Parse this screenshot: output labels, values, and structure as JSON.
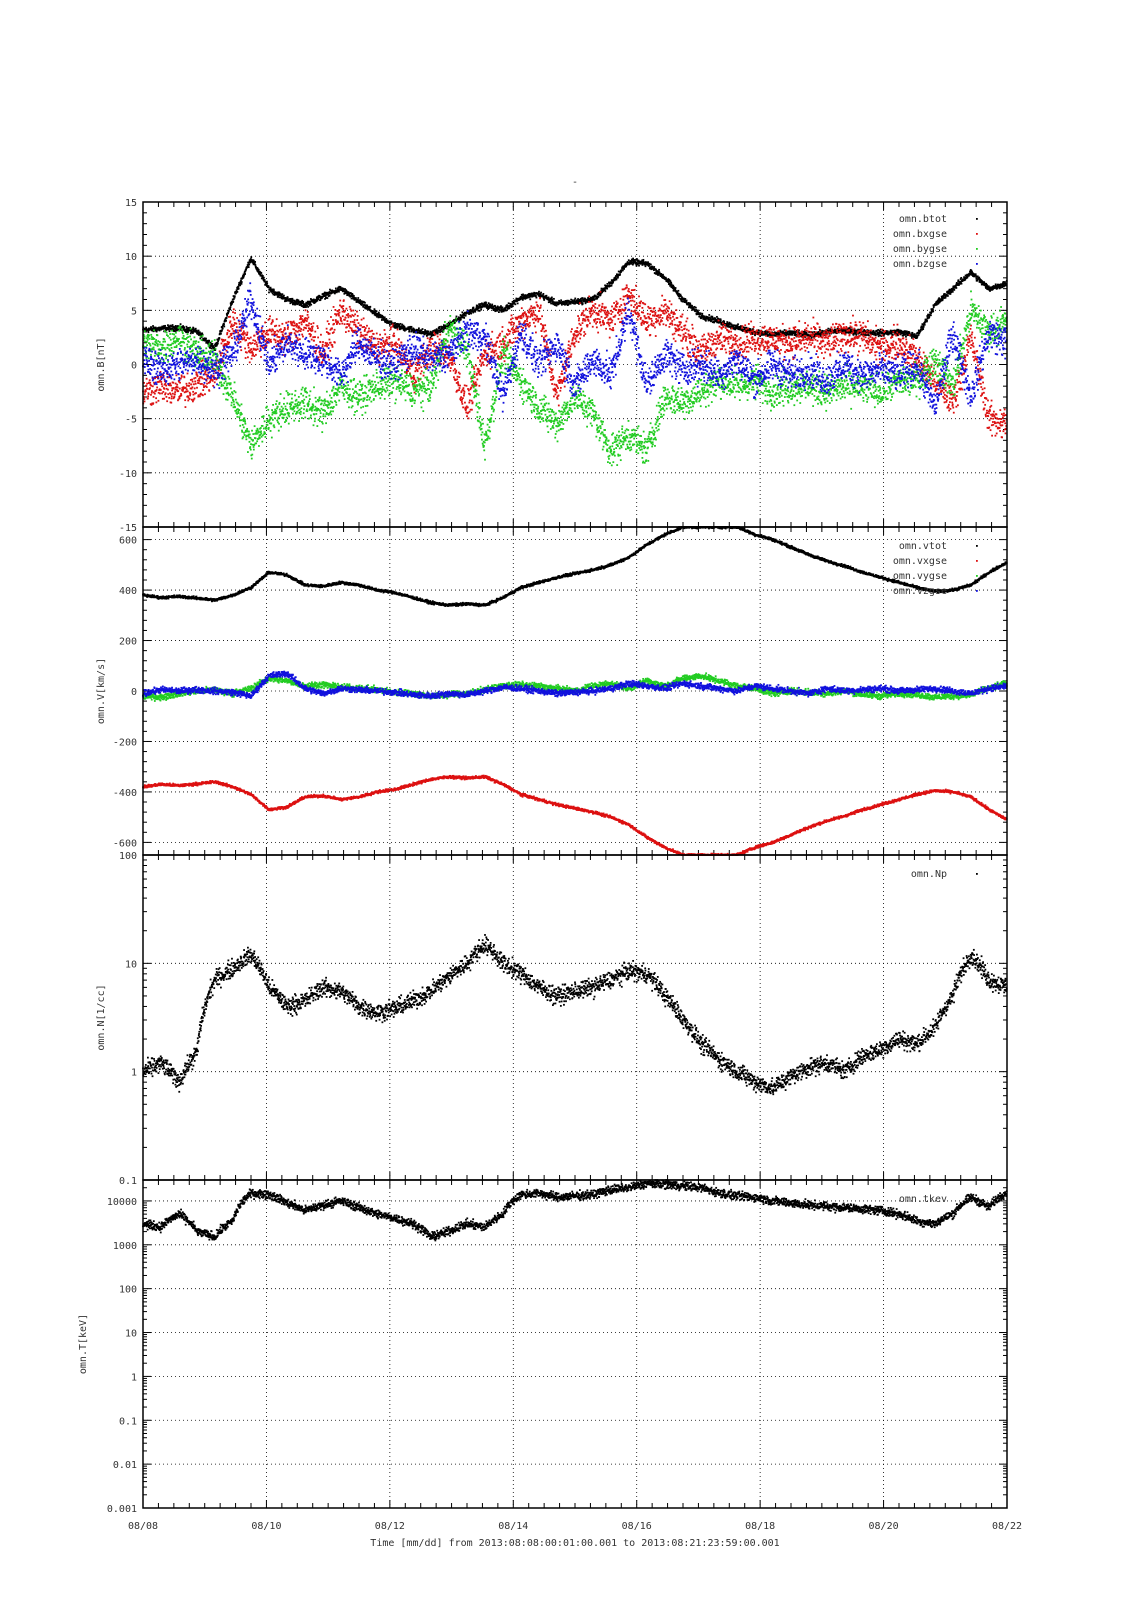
{
  "title": "-",
  "footer": "Time [mm/dd]  from 2013:08:08:00:01:00.001  to  2013:08:21:23:59:00.001",
  "chart_data": [
    {
      "type": "scatter",
      "ylabel": "omn.B[nT]",
      "ylim": [
        -15,
        15
      ],
      "yscale": "linear",
      "yticks": [
        -15,
        -10,
        -5,
        0,
        5,
        10,
        15
      ],
      "ytick_labels": [
        "-15",
        "-10",
        "-5",
        "0",
        "5",
        "10",
        "15"
      ],
      "xlim_days": [
        0,
        14
      ],
      "xticks_days": [
        0,
        2,
        4,
        6,
        8,
        10,
        12,
        14
      ],
      "xtick_labels": [
        "08/08",
        "08/10",
        "08/12",
        "08/14",
        "08/16",
        "08/18",
        "08/20",
        "08/22"
      ],
      "grid": true,
      "legend_position": "top-right",
      "series": [
        {
          "name": "omn.btot",
          "color": "#000000",
          "values": [
            3.2,
            3.3,
            3.4,
            3.0,
            1.5,
            6.0,
            9.8,
            7.0,
            6.0,
            5.5,
            6.3,
            7.0,
            5.8,
            4.6,
            3.6,
            3.2,
            2.8,
            3.6,
            4.8,
            5.5,
            5.0,
            6.2,
            6.5,
            5.6,
            5.8,
            6.0,
            7.5,
            9.5,
            9.3,
            8.0,
            6.0,
            4.5,
            4.0,
            3.4,
            3.0,
            2.8,
            2.9,
            2.7,
            3.0,
            3.1,
            3.0,
            2.9,
            3.0,
            2.6,
            5.5,
            7.0,
            8.5,
            7.0,
            7.5
          ]
        },
        {
          "name": "omn.bxgse",
          "color": "#dd1111",
          "values": [
            -2.5,
            -2.0,
            -2.5,
            -1.8,
            -1.0,
            4.0,
            1.5,
            3.0,
            2.5,
            4.0,
            1.0,
            5.0,
            3.0,
            1.5,
            2.0,
            -1.0,
            1.5,
            1.0,
            -4.0,
            1.0,
            2.0,
            4.0,
            5.0,
            -3.0,
            3.0,
            5.0,
            4.0,
            6.5,
            4.0,
            5.0,
            3.0,
            1.0,
            2.5,
            2.0,
            2.5,
            2.3,
            2.0,
            2.5,
            2.0,
            2.8,
            2.6,
            1.5,
            2.0,
            0.5,
            -1.5,
            -3.5,
            2.5,
            -5.0,
            -5.5
          ]
        },
        {
          "name": "omn.bygse",
          "color": "#22cc22",
          "values": [
            2.0,
            1.5,
            2.5,
            1.0,
            0.5,
            -3.0,
            -7.5,
            -5.0,
            -4.0,
            -3.5,
            -4.5,
            -2.0,
            -3.0,
            -2.0,
            -1.5,
            -2.5,
            -2.0,
            3.5,
            1.5,
            -7.5,
            1.0,
            -1.5,
            -4.0,
            -5.5,
            -3.0,
            -4.5,
            -8.0,
            -6.5,
            -8.0,
            -3.0,
            -3.5,
            -2.5,
            -1.5,
            -2.0,
            -1.5,
            -2.5,
            -2.0,
            -2.0,
            -2.5,
            -2.0,
            -2.2,
            -2.5,
            -1.5,
            -1.5,
            0.5,
            -2.0,
            5.0,
            3.0,
            4.0
          ]
        },
        {
          "name": "omn.bzgse",
          "color": "#1111dd",
          "values": [
            0.5,
            -0.5,
            0.0,
            0.5,
            -0.5,
            1.0,
            6.0,
            0.0,
            2.0,
            1.0,
            0.5,
            -1.0,
            2.0,
            0.5,
            0.0,
            1.5,
            0.5,
            1.0,
            3.0,
            2.5,
            -3.0,
            3.0,
            0.0,
            2.0,
            -2.0,
            0.5,
            -1.0,
            5.0,
            -2.0,
            1.0,
            -0.5,
            0.0,
            -1.0,
            0.5,
            -1.5,
            0.0,
            -1.0,
            -0.5,
            -1.5,
            0.0,
            -1.0,
            -0.5,
            -1.0,
            0.0,
            -4.0,
            3.0,
            -3.0,
            3.0,
            2.0
          ]
        }
      ]
    },
    {
      "type": "scatter",
      "ylabel": "omn.V[km/s]",
      "ylim": [
        -650,
        650
      ],
      "yscale": "linear",
      "yticks": [
        -600,
        -400,
        -200,
        0,
        200,
        400,
        600
      ],
      "ytick_labels": [
        "-600",
        "-400",
        "-200",
        "0",
        "200",
        "400",
        "600"
      ],
      "xlim_days": [
        0,
        14
      ],
      "xticks_days": [
        0,
        2,
        4,
        6,
        8,
        10,
        12,
        14
      ],
      "xtick_labels": [
        "08/08",
        "08/10",
        "08/12",
        "08/14",
        "08/16",
        "08/18",
        "08/20",
        "08/22"
      ],
      "grid": true,
      "legend_position": "top-right",
      "series": [
        {
          "name": "omn.vtot",
          "color": "#000000",
          "values": [
            380,
            370,
            375,
            368,
            360,
            380,
            410,
            470,
            460,
            420,
            415,
            430,
            420,
            400,
            390,
            370,
            350,
            340,
            345,
            340,
            370,
            410,
            430,
            450,
            465,
            480,
            500,
            530,
            580,
            620,
            650,
            650,
            650,
            650,
            620,
            600,
            570,
            540,
            515,
            495,
            470,
            450,
            430,
            410,
            395,
            400,
            420,
            470,
            510
          ]
        },
        {
          "name": "omn.vxgse",
          "color": "#dd1111",
          "values": [
            -380,
            -370,
            -375,
            -368,
            -360,
            -380,
            -410,
            -470,
            -460,
            -420,
            -415,
            -430,
            -420,
            -400,
            -390,
            -370,
            -350,
            -340,
            -345,
            -340,
            -370,
            -410,
            -430,
            -450,
            -465,
            -480,
            -500,
            -530,
            -580,
            -620,
            -650,
            -650,
            -650,
            -650,
            -620,
            -600,
            -570,
            -540,
            -515,
            -495,
            -470,
            -450,
            -430,
            -410,
            -395,
            -400,
            -420,
            -470,
            -510
          ]
        },
        {
          "name": "omn.vygse",
          "color": "#22cc22",
          "values": [
            -20,
            -25,
            -10,
            0,
            5,
            -10,
            10,
            50,
            40,
            20,
            25,
            15,
            10,
            5,
            -5,
            -10,
            -20,
            -15,
            -10,
            5,
            20,
            25,
            20,
            10,
            0,
            20,
            30,
            10,
            40,
            20,
            50,
            60,
            40,
            20,
            10,
            -10,
            0,
            -5,
            -10,
            0,
            -15,
            -20,
            -10,
            -15,
            -25,
            -20,
            -15,
            10,
            30
          ]
        },
        {
          "name": "omn.vzgse",
          "color": "#1111dd",
          "values": [
            -10,
            5,
            0,
            5,
            0,
            -5,
            -20,
            60,
            70,
            10,
            -10,
            10,
            5,
            0,
            -5,
            -15,
            -20,
            -10,
            -15,
            0,
            15,
            10,
            0,
            -10,
            -5,
            0,
            10,
            30,
            20,
            10,
            30,
            20,
            10,
            0,
            20,
            10,
            0,
            -10,
            10,
            0,
            5,
            10,
            0,
            5,
            10,
            0,
            -10,
            10,
            20
          ]
        }
      ]
    },
    {
      "type": "scatter",
      "ylabel": "omn.N[1/cc]",
      "ylim": [
        0.1,
        100
      ],
      "yscale": "log",
      "yticks": [
        0.1,
        1,
        10,
        100
      ],
      "ytick_labels": [
        "0.1",
        "1",
        "10",
        "100"
      ],
      "xlim_days": [
        0,
        14
      ],
      "xticks_days": [
        0,
        2,
        4,
        6,
        8,
        10,
        12,
        14
      ],
      "xtick_labels": [
        "08/08",
        "08/10",
        "08/12",
        "08/14",
        "08/16",
        "08/18",
        "08/20",
        "08/22"
      ],
      "grid": true,
      "legend_position": "top-right",
      "series": [
        {
          "name": "omn.Np",
          "color": "#000000",
          "values": [
            1.0,
            1.2,
            0.8,
            1.5,
            7.0,
            9.0,
            12.0,
            6.0,
            4.0,
            4.5,
            6.0,
            5.5,
            4.0,
            3.5,
            3.8,
            4.5,
            5.5,
            7.5,
            10.0,
            15.0,
            10.0,
            8.0,
            6.0,
            5.0,
            5.5,
            6.0,
            7.0,
            8.5,
            8.0,
            5.0,
            3.0,
            1.8,
            1.3,
            1.0,
            0.8,
            0.7,
            0.9,
            1.1,
            1.2,
            1.0,
            1.4,
            1.6,
            2.0,
            1.8,
            2.5,
            5.0,
            12.0,
            7.0,
            6.0
          ]
        }
      ]
    },
    {
      "type": "scatter",
      "ylabel": "omn.T[keV]",
      "ylim": [
        0.001,
        30000
      ],
      "yscale": "log",
      "yticks": [
        0.001,
        0.01,
        0.1,
        1,
        10,
        100,
        1000,
        10000
      ],
      "ytick_labels": [
        "0.001",
        "0.01",
        "0.1",
        "1",
        "10",
        "100",
        "1000",
        "10000"
      ],
      "xlim_days": [
        0,
        14
      ],
      "xticks_days": [
        0,
        2,
        4,
        6,
        8,
        10,
        12,
        14
      ],
      "xtick_labels": [
        "08/08",
        "08/10",
        "08/12",
        "08/14",
        "08/16",
        "08/18",
        "08/20",
        "08/22"
      ],
      "grid": true,
      "legend_position": "top-right",
      "series": [
        {
          "name": "omn.tkev",
          "color": "#000000",
          "values": [
            3000,
            2500,
            5000,
            2000,
            1500,
            3500,
            15000,
            14000,
            9000,
            6000,
            8000,
            10000,
            7000,
            5000,
            4000,
            3000,
            1500,
            2000,
            3000,
            2500,
            5000,
            14000,
            15000,
            12000,
            13000,
            14000,
            18000,
            20000,
            25000,
            24000,
            22000,
            20000,
            15000,
            13000,
            12000,
            10000,
            9000,
            8000,
            7500,
            7000,
            6500,
            6000,
            5000,
            3500,
            3000,
            5000,
            12000,
            7000,
            16000
          ]
        }
      ]
    }
  ]
}
